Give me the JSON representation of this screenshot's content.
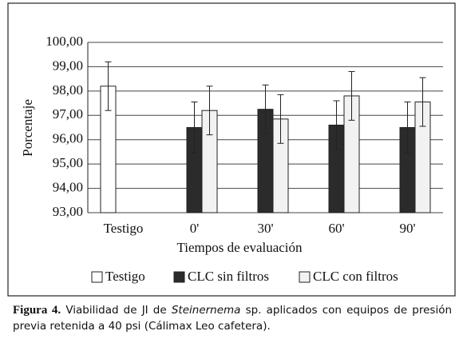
{
  "chart_data": {
    "type": "bar",
    "y_label": "Porcentaje",
    "x_label": "Tiempos de evaluación",
    "categories": [
      "Testigo",
      "0'",
      "30'",
      "60'",
      "90'"
    ],
    "series": [
      {
        "name": "Testigo",
        "color": "#ffffff",
        "values": [
          98.2,
          null,
          null,
          null,
          null
        ],
        "errors": [
          1.0,
          null,
          null,
          null,
          null
        ]
      },
      {
        "name": "CLC sin filtros",
        "color": "#2b2b2b",
        "values": [
          null,
          96.5,
          97.25,
          96.6,
          96.5
        ],
        "errors": [
          null,
          1.05,
          1.0,
          1.0,
          1.05
        ]
      },
      {
        "name": "CLC con filtros",
        "color": "#f2f2f2",
        "values": [
          null,
          97.2,
          96.85,
          97.8,
          97.55
        ],
        "errors": [
          null,
          1.0,
          1.0,
          1.0,
          1.0
        ]
      }
    ],
    "ylim": [
      93,
      100
    ],
    "yticks": [
      {
        "value": 93,
        "label": "93,00"
      },
      {
        "value": 94,
        "label": "94,00"
      },
      {
        "value": 95,
        "label": "95,00"
      },
      {
        "value": 96,
        "label": "96,00"
      },
      {
        "value": 97,
        "label": "97,00"
      },
      {
        "value": 98,
        "label": "98,00"
      },
      {
        "value": 99,
        "label": "99,00"
      },
      {
        "value": 100,
        "label": "100,00"
      }
    ],
    "grid": true,
    "legend": "bottom"
  },
  "caption": {
    "label": "Figura 4.",
    "before": "Viabilidad de JI de",
    "italic": "Steinernema",
    "after": "sp. aplicados con equipos de presión previa retenida a 40 psi (Cálimax Leo cafetera)."
  }
}
